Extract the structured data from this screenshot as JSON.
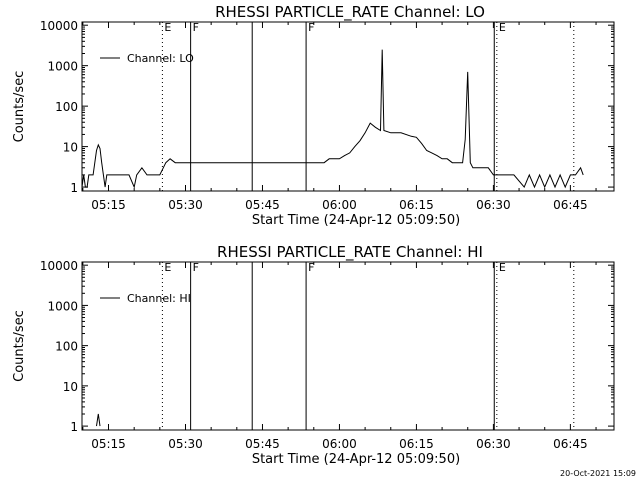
{
  "chart_data": [
    {
      "type": "line",
      "title": "RHESSI PARTICLE_RATE Channel: LO",
      "xlabel": "Start Time (24-Apr-12 05:09:50)",
      "ylabel": "Counts/sec",
      "yscale": "log",
      "ylim": [
        0.8,
        12000
      ],
      "xlim": [
        "05:09:50",
        "06:53:30"
      ],
      "x_ticks": [
        "05:15",
        "05:30",
        "05:45",
        "06:00",
        "06:15",
        "06:30",
        "06:45"
      ],
      "y_ticks": [
        "1",
        "10",
        "100",
        "1000",
        "10000"
      ],
      "legend": "top-left",
      "grid": false,
      "series": [
        {
          "name": "Channel: LO",
          "points": [
            [
              "05:09:50",
              1
            ],
            [
              "05:10:10",
              2
            ],
            [
              "05:10:30",
              1
            ],
            [
              "05:10:50",
              1
            ],
            [
              "05:11:10",
              2
            ],
            [
              "05:11:30",
              2
            ],
            [
              "05:12:00",
              2
            ],
            [
              "05:12:20",
              4
            ],
            [
              "05:12:40",
              8
            ],
            [
              "05:13:00",
              11
            ],
            [
              "05:13:20",
              9
            ],
            [
              "05:13:40",
              4
            ],
            [
              "05:14:00",
              2
            ],
            [
              "05:14:20",
              1
            ],
            [
              "05:14:40",
              2
            ],
            [
              "05:15:30",
              2
            ],
            [
              "05:17:00",
              2
            ],
            [
              "05:18:00",
              2
            ],
            [
              "05:19:00",
              2
            ],
            [
              "05:20:00",
              1
            ],
            [
              "05:20:30",
              2
            ],
            [
              "05:21:30",
              3
            ],
            [
              "05:22:30",
              2
            ],
            [
              "05:23:30",
              2
            ],
            [
              "05:24:30",
              2
            ],
            [
              "05:25:00",
              2
            ],
            [
              "05:25:40",
              3
            ],
            [
              "05:26:10",
              4
            ],
            [
              "05:27:00",
              5
            ],
            [
              "05:28:00",
              4
            ],
            [
              "05:29:00",
              4
            ],
            [
              "05:30:00",
              4
            ],
            [
              "05:32:00",
              4
            ],
            [
              "05:35:00",
              4
            ],
            [
              "05:38:00",
              4
            ],
            [
              "05:41:00",
              4
            ],
            [
              "05:44:00",
              4
            ],
            [
              "05:47:00",
              4
            ],
            [
              "05:50:00",
              4
            ],
            [
              "05:52:00",
              4
            ],
            [
              "05:54:00",
              4
            ],
            [
              "05:55:00",
              4
            ],
            [
              "05:56:00",
              4
            ],
            [
              "05:57:00",
              4
            ],
            [
              "05:58:00",
              5
            ],
            [
              "05:59:00",
              5
            ],
            [
              "06:00:00",
              5
            ],
            [
              "06:01:00",
              6
            ],
            [
              "06:02:00",
              7
            ],
            [
              "06:03:00",
              10
            ],
            [
              "06:04:00",
              14
            ],
            [
              "06:05:00",
              22
            ],
            [
              "06:06:00",
              38
            ],
            [
              "06:07:00",
              30
            ],
            [
              "06:08:00",
              25
            ],
            [
              "06:08:20",
              2500
            ],
            [
              "06:08:40",
              25
            ],
            [
              "06:10:00",
              22
            ],
            [
              "06:12:00",
              22
            ],
            [
              "06:14:00",
              18
            ],
            [
              "06:15:00",
              17
            ],
            [
              "06:16:00",
              12
            ],
            [
              "06:17:00",
              8
            ],
            [
              "06:18:00",
              7
            ],
            [
              "06:19:00",
              6
            ],
            [
              "06:20:00",
              5
            ],
            [
              "06:21:00",
              5
            ],
            [
              "06:22:00",
              4
            ],
            [
              "06:23:00",
              4
            ],
            [
              "06:24:00",
              4
            ],
            [
              "06:24:30",
              15
            ],
            [
              "06:25:00",
              700
            ],
            [
              "06:25:30",
              4
            ],
            [
              "06:26:00",
              3
            ],
            [
              "06:27:00",
              3
            ],
            [
              "06:28:00",
              3
            ],
            [
              "06:29:00",
              3
            ],
            [
              "06:30:00",
              2
            ],
            [
              "06:31:00",
              2
            ],
            [
              "06:32:00",
              2
            ],
            [
              "06:34:00",
              2
            ],
            [
              "06:36:00",
              1
            ],
            [
              "06:37:00",
              2
            ],
            [
              "06:38:00",
              1
            ],
            [
              "06:39:00",
              2
            ],
            [
              "06:40:00",
              1
            ],
            [
              "06:41:00",
              2
            ],
            [
              "06:42:00",
              1
            ],
            [
              "06:43:00",
              2
            ],
            [
              "06:44:00",
              1
            ],
            [
              "06:45:00",
              2
            ],
            [
              "06:46:00",
              2
            ],
            [
              "06:47:00",
              3
            ],
            [
              "06:47:30",
              2
            ]
          ]
        }
      ],
      "markers": [
        {
          "time": "05:25:30",
          "style": "dotted",
          "label": "E"
        },
        {
          "time": "05:31:00",
          "style": "solid",
          "label": "F"
        },
        {
          "time": "05:43:00",
          "style": "solid",
          "label": ""
        },
        {
          "time": "05:53:30",
          "style": "solid",
          "label": "F"
        },
        {
          "time": "06:30:10",
          "style": "solid",
          "label": ""
        },
        {
          "time": "06:30:40",
          "style": "dotted",
          "label": "E"
        },
        {
          "time": "06:45:40",
          "style": "dotted",
          "label": ""
        }
      ]
    },
    {
      "type": "line",
      "title": "RHESSI PARTICLE_RATE Channel: HI",
      "xlabel": "Start Time (24-Apr-12 05:09:50)",
      "ylabel": "Counts/sec",
      "yscale": "log",
      "ylim": [
        0.8,
        12000
      ],
      "xlim": [
        "05:09:50",
        "06:53:30"
      ],
      "x_ticks": [
        "05:15",
        "05:30",
        "05:45",
        "06:00",
        "06:15",
        "06:30",
        "06:45"
      ],
      "y_ticks": [
        "1",
        "10",
        "100",
        "1000",
        "10000"
      ],
      "legend": "top-left",
      "grid": false,
      "series": [
        {
          "name": "Channel: HI",
          "points": [
            [
              "05:12:40",
              1
            ],
            [
              "05:13:00",
              2
            ],
            [
              "05:13:20",
              1
            ]
          ]
        }
      ],
      "markers": [
        {
          "time": "05:25:30",
          "style": "dotted",
          "label": "E"
        },
        {
          "time": "05:31:00",
          "style": "solid",
          "label": "F"
        },
        {
          "time": "05:43:00",
          "style": "solid",
          "label": ""
        },
        {
          "time": "05:53:30",
          "style": "solid",
          "label": "F"
        },
        {
          "time": "06:30:10",
          "style": "solid",
          "label": ""
        },
        {
          "time": "06:30:40",
          "style": "dotted",
          "label": "E"
        },
        {
          "time": "06:45:40",
          "style": "dotted",
          "label": ""
        }
      ]
    }
  ],
  "footer": {
    "stamp": "20-Oct-2021 15:09"
  }
}
